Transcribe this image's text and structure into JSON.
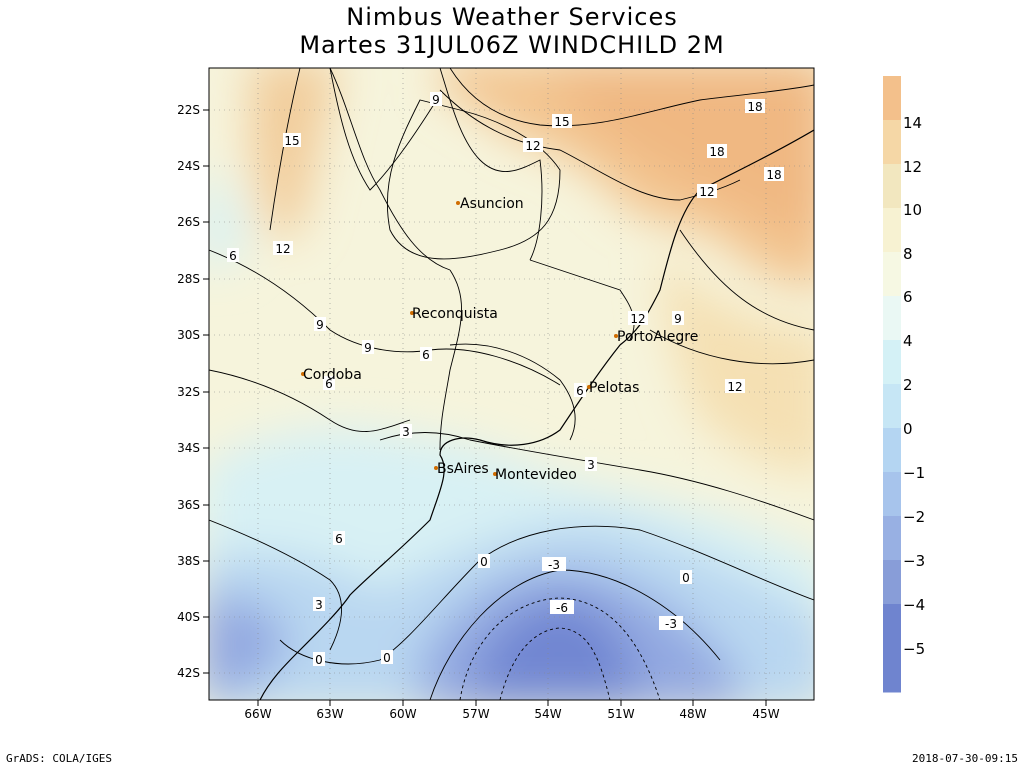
{
  "header": {
    "line1": "Nimbus Weather Services",
    "line2": "Martes 31JUL06Z WINDCHILD 2M"
  },
  "map": {
    "lat_ticks": [
      "22S",
      "24S",
      "26S",
      "28S",
      "30S",
      "32S",
      "34S",
      "36S",
      "38S",
      "40S",
      "42S"
    ],
    "lon_ticks": [
      "66W",
      "63W",
      "60W",
      "57W",
      "54W",
      "51W",
      "48W",
      "45W"
    ],
    "cities": [
      "Asuncion",
      "Reconquista",
      "PortoAlegre",
      "Cordoba",
      "Pelotas",
      "BsAires",
      "Montevideo"
    ],
    "contour_labels": [
      "15",
      "18",
      "18",
      "15",
      "9",
      "12",
      "18",
      "12",
      "6",
      "12",
      "12",
      "9",
      "9",
      "6",
      "9",
      "6",
      "12",
      "6",
      "3",
      "3",
      "6",
      "0",
      "-3",
      "0",
      "-6",
      "-3",
      "3",
      "0",
      "0"
    ]
  },
  "legend": {
    "labels": [
      "14",
      "12",
      "10",
      "8",
      "6",
      "4",
      "2",
      "0",
      "−1",
      "−2",
      "−3",
      "−4",
      "−5"
    ],
    "colors": [
      "#f3c08b",
      "#f5d7a6",
      "#f2e7bf",
      "#f7f2d2",
      "#f6f8e3",
      "#eaf8f4",
      "#d4f1f6",
      "#c6e6f5",
      "#b4d5f2",
      "#a7c4ec",
      "#98b0e3",
      "#889dd8",
      "#6f84cf"
    ]
  },
  "footer": {
    "left": "GrADS: COLA/IGES",
    "right": "2018-07-30-09:15"
  }
}
